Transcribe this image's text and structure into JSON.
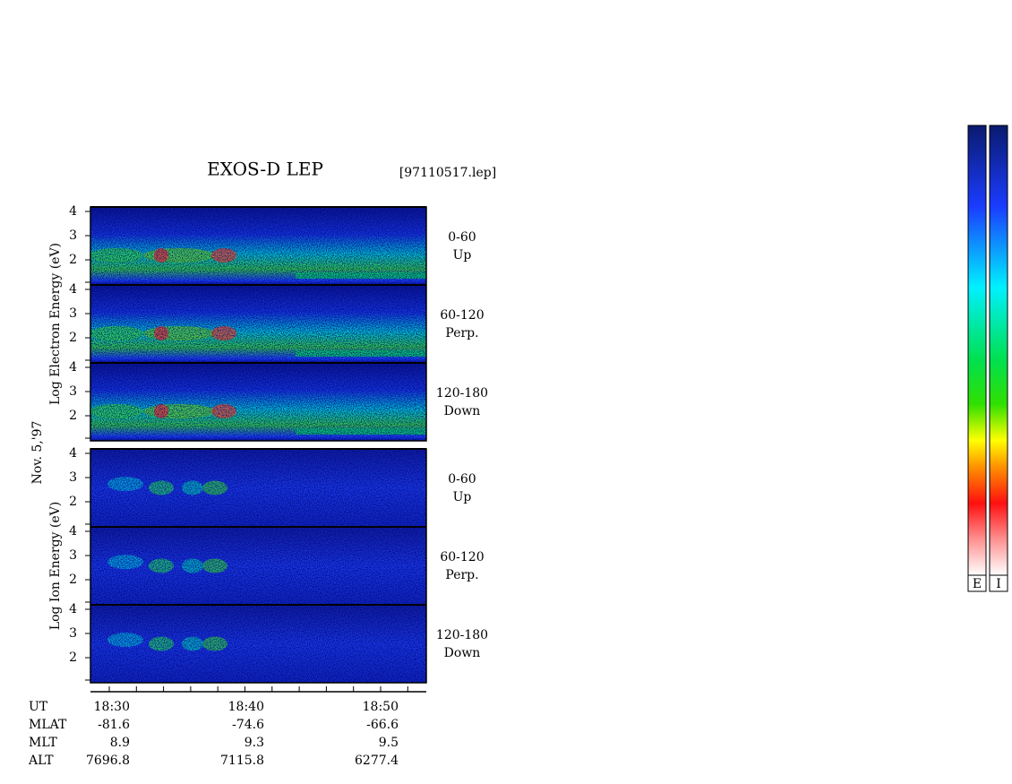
{
  "title": "EXOS-D LEP",
  "file": "[97110517.lep]",
  "date": "Nov. 5,'97",
  "groups": [
    {
      "ylabel": "Log  Electron  Energy (eV)",
      "panels": [
        {
          "range": "0-60",
          "dir": "Up"
        },
        {
          "range": "60-120",
          "dir": "Perp."
        },
        {
          "range": "120-180",
          "dir": "Down"
        }
      ]
    },
    {
      "ylabel": "Log  Ion  Energy (eV)",
      "panels": [
        {
          "range": "0-60",
          "dir": "Up"
        },
        {
          "range": "60-120",
          "dir": "Perp."
        },
        {
          "range": "120-180",
          "dir": "Down"
        }
      ]
    }
  ],
  "yticks": [
    "4",
    "3",
    "2"
  ],
  "footer": [
    {
      "name": "UT",
      "values": [
        "18:30",
        "18:40",
        "18:50"
      ]
    },
    {
      "name": "MLAT",
      "values": [
        "-81.6",
        "-74.6",
        "-66.6"
      ]
    },
    {
      "name": "MLT",
      "values": [
        "8.9",
        "9.3",
        "9.5"
      ]
    },
    {
      "name": "ALT",
      "values": [
        "7696.8",
        "7115.8",
        "6277.4"
      ]
    }
  ],
  "colorbars": [
    "E",
    "I"
  ]
}
